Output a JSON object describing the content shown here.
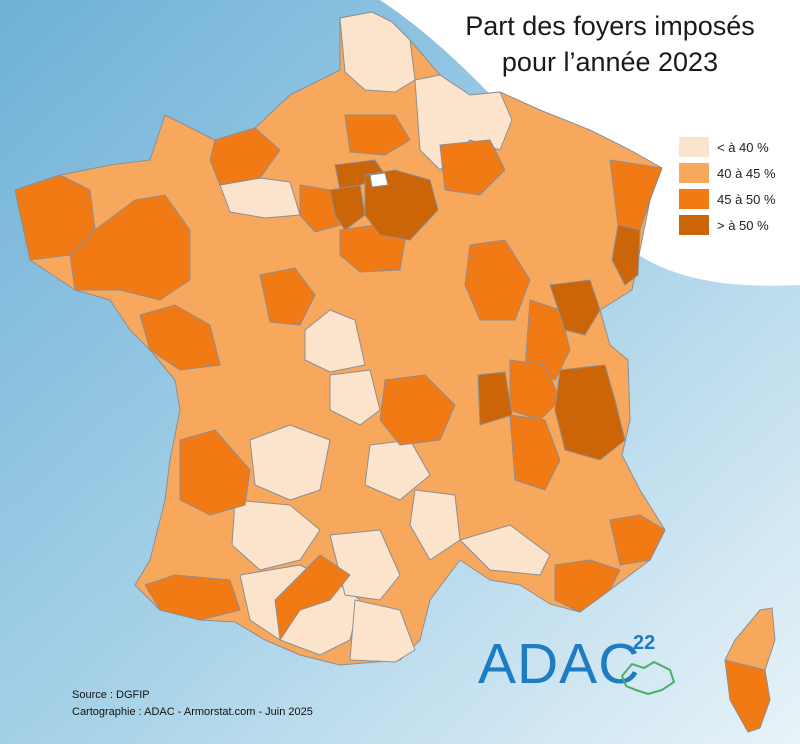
{
  "title": {
    "line1": "Part des  foyers imposés",
    "line2": "pour l’année 2023"
  },
  "legend": [
    {
      "label": "< à 40 %",
      "color": "#fce3cc"
    },
    {
      "label": "40 à 45 %",
      "color": "#f7a85c"
    },
    {
      "label": "45 à 50 %",
      "color": "#f27a14"
    },
    {
      "label": "> à 50 %",
      "color": "#cc6508"
    }
  ],
  "source": {
    "line1": "Source : DGFIP",
    "line2": "Cartographie : ADAC - Armorstat.com - Juin 2025"
  },
  "logo": {
    "text": "ADAC",
    "number": "22"
  },
  "colors": {
    "sea": "#a9d3e8",
    "border": "#8a8f96",
    "background_white": "#ffffff"
  }
}
